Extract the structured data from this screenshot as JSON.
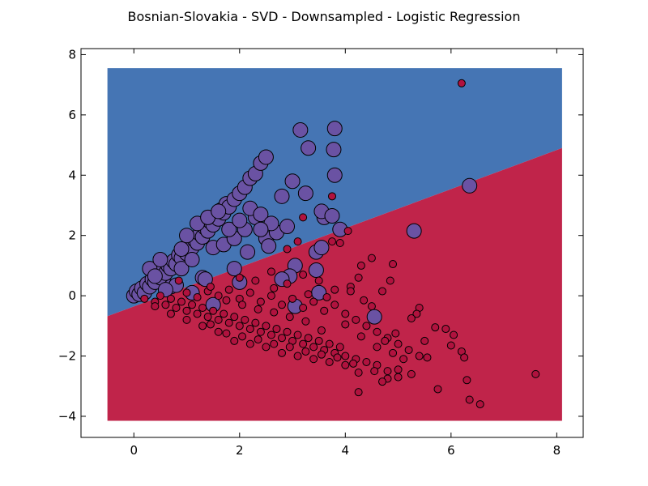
{
  "chart_data": {
    "type": "scatter",
    "title": "Bosnian-Slovakia - SVD - Downsampled - Logistic Regression",
    "xlabel": "",
    "ylabel": "",
    "xlim": [
      -1,
      8.5
    ],
    "ylim": [
      -4.7,
      8.2
    ],
    "x_ticks": [
      "0",
      "2",
      "4",
      "6",
      "8"
    ],
    "y_ticks": [
      "−4",
      "−2",
      "0",
      "2",
      "4",
      "6",
      "8"
    ],
    "grid": false,
    "legend": "none",
    "decision_region": {
      "x_range": [
        -0.5,
        8.1
      ],
      "y_range": [
        -4.15,
        7.55
      ],
      "boundary_line": [
        [
          -0.5,
          -0.68
        ],
        [
          8.1,
          4.9
        ]
      ],
      "upper_region_color": "#4575b4",
      "lower_region_color": "#c0244a"
    },
    "series": [
      {
        "marker_color": "#6a52a3",
        "marker_size": "large",
        "points": [
          [
            0.0,
            0.0
          ],
          [
            0.05,
            0.15
          ],
          [
            0.1,
            0.05
          ],
          [
            0.15,
            0.25
          ],
          [
            0.2,
            0.1
          ],
          [
            0.25,
            0.4
          ],
          [
            0.3,
            0.3
          ],
          [
            0.35,
            0.55
          ],
          [
            0.4,
            0.45
          ],
          [
            0.45,
            0.7
          ],
          [
            0.5,
            0.6
          ],
          [
            0.55,
            0.85
          ],
          [
            0.6,
            0.75
          ],
          [
            0.65,
            1.0
          ],
          [
            0.7,
            0.9
          ],
          [
            0.75,
            1.15
          ],
          [
            0.8,
            1.05
          ],
          [
            0.85,
            1.35
          ],
          [
            0.9,
            1.25
          ],
          [
            0.95,
            1.5
          ],
          [
            1.0,
            1.4
          ],
          [
            1.05,
            1.7
          ],
          [
            1.1,
            1.6
          ],
          [
            1.15,
            1.85
          ],
          [
            1.2,
            1.75
          ],
          [
            1.25,
            2.05
          ],
          [
            1.3,
            1.95
          ],
          [
            1.35,
            2.25
          ],
          [
            1.4,
            2.15
          ],
          [
            1.45,
            2.45
          ],
          [
            1.5,
            2.35
          ],
          [
            1.55,
            2.65
          ],
          [
            1.6,
            2.55
          ],
          [
            1.65,
            2.85
          ],
          [
            1.7,
            2.75
          ],
          [
            1.75,
            3.05
          ],
          [
            1.8,
            2.95
          ],
          [
            1.9,
            3.2
          ],
          [
            2.0,
            3.4
          ],
          [
            2.1,
            3.6
          ],
          [
            2.2,
            3.9
          ],
          [
            2.3,
            4.05
          ],
          [
            2.4,
            4.4
          ],
          [
            2.5,
            4.6
          ],
          [
            0.3,
            0.9
          ],
          [
            0.5,
            1.2
          ],
          [
            0.7,
            0.3
          ],
          [
            0.9,
            0.9
          ],
          [
            1.1,
            1.2
          ],
          [
            1.3,
            0.6
          ],
          [
            1.5,
            1.6
          ],
          [
            1.7,
            1.7
          ],
          [
            1.9,
            1.9
          ],
          [
            2.1,
            2.2
          ],
          [
            2.3,
            2.6
          ],
          [
            2.5,
            1.9
          ],
          [
            2.7,
            2.1
          ],
          [
            2.9,
            2.3
          ],
          [
            1.0,
            2.0
          ],
          [
            1.2,
            2.4
          ],
          [
            1.4,
            2.6
          ],
          [
            1.6,
            2.8
          ],
          [
            1.8,
            2.2
          ],
          [
            2.0,
            2.5
          ],
          [
            2.2,
            2.9
          ],
          [
            2.4,
            2.7
          ],
          [
            2.6,
            2.4
          ],
          [
            2.8,
            3.3
          ],
          [
            3.0,
            3.8
          ],
          [
            3.15,
            5.5
          ],
          [
            3.3,
            4.9
          ],
          [
            3.25,
            3.4
          ],
          [
            3.6,
            2.6
          ],
          [
            3.55,
            2.8
          ],
          [
            3.75,
            2.65
          ],
          [
            3.8,
            4.0
          ],
          [
            3.78,
            4.85
          ],
          [
            3.8,
            5.55
          ],
          [
            3.9,
            2.2
          ],
          [
            3.45,
            1.45
          ],
          [
            3.55,
            1.6
          ],
          [
            3.05,
            1.0
          ],
          [
            3.45,
            0.85
          ],
          [
            2.95,
            0.65
          ],
          [
            3.5,
            0.1
          ],
          [
            3.05,
            -0.35
          ],
          [
            4.55,
            -0.7
          ],
          [
            1.5,
            -0.3
          ],
          [
            0.8,
            0.35
          ],
          [
            1.35,
            0.55
          ],
          [
            0.9,
            1.55
          ],
          [
            2.8,
            0.55
          ],
          [
            2.0,
            0.45
          ],
          [
            2.15,
            1.45
          ],
          [
            2.4,
            2.2
          ],
          [
            2.55,
            1.65
          ],
          [
            5.3,
            2.15
          ],
          [
            6.35,
            3.65
          ],
          [
            1.1,
            0.1
          ],
          [
            0.6,
            0.2
          ],
          [
            0.4,
            0.65
          ],
          [
            1.9,
            0.9
          ]
        ]
      },
      {
        "marker_color": "#b0123e",
        "marker_size": "small",
        "points": [
          [
            0.2,
            -0.1
          ],
          [
            0.4,
            -0.2
          ],
          [
            0.6,
            -0.3
          ],
          [
            0.8,
            -0.4
          ],
          [
            1.0,
            -0.5
          ],
          [
            1.2,
            -0.6
          ],
          [
            1.4,
            -0.7
          ],
          [
            1.6,
            -0.8
          ],
          [
            1.8,
            -0.9
          ],
          [
            2.0,
            -1.0
          ],
          [
            2.2,
            -1.1
          ],
          [
            2.4,
            -1.2
          ],
          [
            2.6,
            -1.3
          ],
          [
            2.8,
            -1.4
          ],
          [
            3.0,
            -1.5
          ],
          [
            3.2,
            -1.6
          ],
          [
            3.4,
            -1.7
          ],
          [
            3.6,
            -1.8
          ],
          [
            3.8,
            -1.9
          ],
          [
            4.0,
            -2.0
          ],
          [
            4.2,
            -2.1
          ],
          [
            4.4,
            -2.2
          ],
          [
            4.6,
            -2.3
          ],
          [
            0.5,
            0.0
          ],
          [
            0.7,
            -0.1
          ],
          [
            0.9,
            -0.2
          ],
          [
            1.1,
            -0.3
          ],
          [
            1.3,
            -0.4
          ],
          [
            1.5,
            -0.5
          ],
          [
            1.7,
            -0.6
          ],
          [
            1.9,
            -0.7
          ],
          [
            2.1,
            -0.8
          ],
          [
            2.3,
            -0.9
          ],
          [
            2.5,
            -1.0
          ],
          [
            2.7,
            -1.1
          ],
          [
            2.9,
            -1.2
          ],
          [
            3.1,
            -1.3
          ],
          [
            3.3,
            -1.4
          ],
          [
            3.5,
            -1.5
          ],
          [
            3.7,
            -1.6
          ],
          [
            3.9,
            -1.7
          ],
          [
            1.0,
            0.1
          ],
          [
            1.2,
            -0.05
          ],
          [
            1.4,
            0.15
          ],
          [
            1.6,
            0.0
          ],
          [
            1.8,
            0.2
          ],
          [
            2.0,
            -0.1
          ],
          [
            2.2,
            0.1
          ],
          [
            2.4,
            -0.2
          ],
          [
            2.6,
            0.0
          ],
          [
            2.8,
            -0.3
          ],
          [
            3.0,
            -0.1
          ],
          [
            3.2,
            -0.4
          ],
          [
            3.4,
            -0.2
          ],
          [
            3.6,
            -0.5
          ],
          [
            3.8,
            -0.3
          ],
          [
            4.0,
            -0.6
          ],
          [
            4.2,
            -0.8
          ],
          [
            4.4,
            -1.0
          ],
          [
            4.6,
            -1.2
          ],
          [
            4.8,
            -1.4
          ],
          [
            5.0,
            -1.6
          ],
          [
            5.2,
            -1.8
          ],
          [
            5.4,
            -2.0
          ],
          [
            2.0,
            0.6
          ],
          [
            2.3,
            0.5
          ],
          [
            2.6,
            0.8
          ],
          [
            2.9,
            0.4
          ],
          [
            3.2,
            0.7
          ],
          [
            3.5,
            0.5
          ],
          [
            3.8,
            0.2
          ],
          [
            4.1,
            0.3
          ],
          [
            4.3,
            1.0
          ],
          [
            4.5,
            1.25
          ],
          [
            4.9,
            1.05
          ],
          [
            4.85,
            0.5
          ],
          [
            4.25,
            0.6
          ],
          [
            4.1,
            0.15
          ],
          [
            4.35,
            -0.15
          ],
          [
            4.5,
            -0.35
          ],
          [
            3.9,
            1.75
          ],
          [
            4.05,
            2.15
          ],
          [
            3.75,
            1.8
          ],
          [
            3.1,
            1.8
          ],
          [
            2.9,
            1.55
          ],
          [
            3.2,
            2.6
          ],
          [
            3.75,
            3.3
          ],
          [
            6.2,
            7.05
          ],
          [
            4.7,
            0.15
          ],
          [
            5.4,
            -0.4
          ],
          [
            5.35,
            -0.6
          ],
          [
            5.25,
            -0.75
          ],
          [
            4.95,
            -1.25
          ],
          [
            5.5,
            -1.5
          ],
          [
            5.7,
            -1.05
          ],
          [
            5.9,
            -1.1
          ],
          [
            6.05,
            -1.3
          ],
          [
            5.55,
            -2.05
          ],
          [
            5.25,
            -2.6
          ],
          [
            5.0,
            -2.45
          ],
          [
            4.8,
            -2.5
          ],
          [
            4.55,
            -2.5
          ],
          [
            4.25,
            -2.55
          ],
          [
            4.8,
            -2.75
          ],
          [
            5.0,
            -2.7
          ],
          [
            4.7,
            -2.85
          ],
          [
            4.25,
            -3.2
          ],
          [
            5.75,
            -3.1
          ],
          [
            6.3,
            -2.8
          ],
          [
            6.35,
            -3.45
          ],
          [
            6.55,
            -3.6
          ],
          [
            7.6,
            -2.6
          ],
          [
            6.2,
            -1.85
          ],
          [
            6.0,
            -1.65
          ],
          [
            6.25,
            -2.05
          ],
          [
            5.1,
            -2.1
          ],
          [
            4.9,
            -1.9
          ],
          [
            4.75,
            -1.5
          ],
          [
            4.6,
            -1.7
          ],
          [
            4.0,
            -2.3
          ],
          [
            3.7,
            -2.2
          ],
          [
            3.4,
            -2.1
          ],
          [
            3.1,
            -2.0
          ],
          [
            2.8,
            -1.9
          ],
          [
            2.5,
            -1.7
          ],
          [
            2.2,
            -1.6
          ],
          [
            1.9,
            -1.5
          ],
          [
            1.6,
            -1.2
          ],
          [
            1.3,
            -1.0
          ],
          [
            1.0,
            -0.8
          ],
          [
            0.7,
            -0.6
          ],
          [
            0.4,
            -0.35
          ],
          [
            0.85,
            0.5
          ],
          [
            1.45,
            0.3
          ],
          [
            2.65,
            0.25
          ],
          [
            3.3,
            0.05
          ],
          [
            3.65,
            -0.05
          ],
          [
            4.0,
            -0.95
          ],
          [
            4.3,
            -1.35
          ],
          [
            3.55,
            -1.15
          ],
          [
            3.25,
            -0.85
          ],
          [
            2.95,
            -0.7
          ],
          [
            2.65,
            -0.55
          ],
          [
            2.35,
            -0.45
          ],
          [
            2.05,
            -0.3
          ],
          [
            1.75,
            -0.15
          ],
          [
            1.45,
            -0.95
          ],
          [
            1.75,
            -1.25
          ],
          [
            2.05,
            -1.35
          ],
          [
            2.35,
            -1.45
          ],
          [
            2.65,
            -1.6
          ],
          [
            2.95,
            -1.7
          ],
          [
            3.25,
            -1.85
          ],
          [
            3.55,
            -1.95
          ],
          [
            3.85,
            -2.05
          ],
          [
            4.15,
            -2.25
          ]
        ]
      }
    ]
  }
}
